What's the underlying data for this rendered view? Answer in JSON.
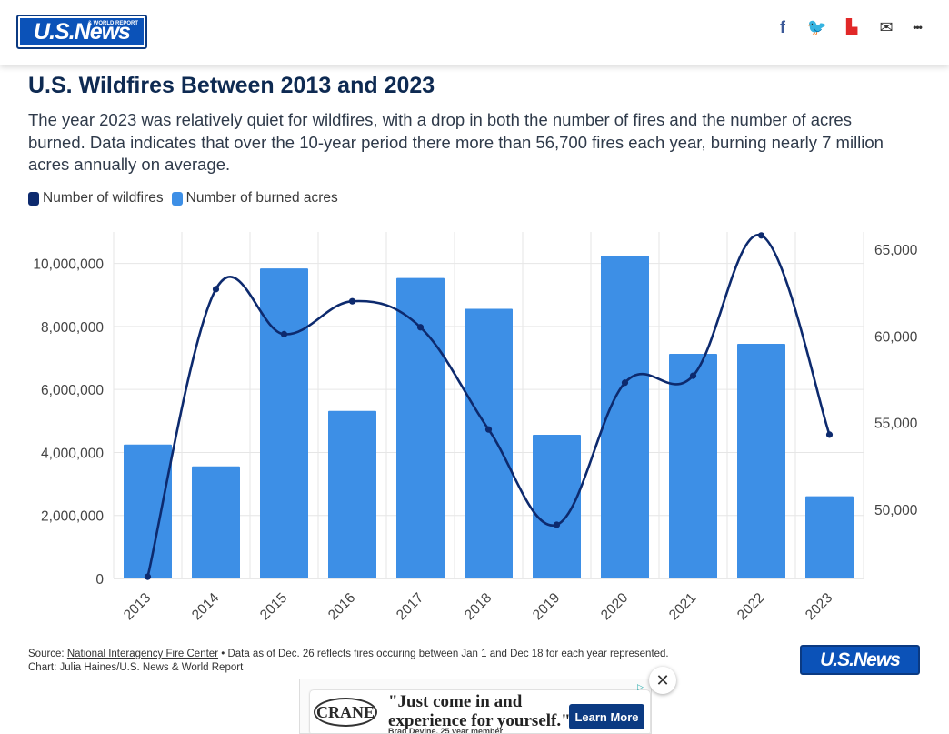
{
  "header": {
    "logo_text": "U.S.News",
    "logo_sub": "& WORLD REPORT",
    "share": [
      {
        "name": "facebook-icon",
        "glyph": "f",
        "color": "#3b5998"
      },
      {
        "name": "twitter-icon",
        "glyph": "🐦",
        "color": "#1da1f2"
      },
      {
        "name": "flipboard-icon",
        "glyph": "▙",
        "color": "#e12828"
      },
      {
        "name": "email-icon",
        "glyph": "✉",
        "color": "#333333"
      },
      {
        "name": "more-icon",
        "glyph": "•••",
        "color": "#333333"
      }
    ]
  },
  "article": {
    "title": "U.S. Wildfires Between 2013 and 2023",
    "description": "The year 2023 was relatively quiet for wildfires, with a drop in both the number of fires and the number of acres burned. Data indicates that over the 10-year period there more than 56,700 fires each year, burning nearly 7 million acres annually on average."
  },
  "legend": [
    {
      "label": "Number of wildfires",
      "color": "#0d2a6e"
    },
    {
      "label": "Number of burned acres",
      "color": "#3d8fe6"
    }
  ],
  "chart_data": {
    "type": "bar",
    "categories": [
      "2013",
      "2014",
      "2015",
      "2016",
      "2017",
      "2018",
      "2019",
      "2020",
      "2021",
      "2022",
      "2023"
    ],
    "series": [
      {
        "name": "Number of burned acres",
        "type": "bar",
        "axis": "left",
        "color": "#3d8fe6",
        "values": [
          4250000,
          3560000,
          9840000,
          5320000,
          9540000,
          8560000,
          4560000,
          10250000,
          7130000,
          7450000,
          2610000
        ]
      },
      {
        "name": "Number of wildfires",
        "type": "line",
        "axis": "right",
        "color": "#0d2a6e",
        "values": [
          46100,
          62700,
          60100,
          62000,
          60500,
          54600,
          49100,
          57300,
          57700,
          65800,
          54300
        ]
      }
    ],
    "left_axis": {
      "ticks": [
        0,
        2000000,
        4000000,
        6000000,
        8000000,
        10000000
      ],
      "tick_labels": [
        "0",
        "2,000,000",
        "4,000,000",
        "6,000,000",
        "8,000,000",
        "10,000,000"
      ],
      "range": [
        0,
        11000000
      ]
    },
    "right_axis": {
      "ticks": [
        50000,
        55000,
        60000,
        65000
      ],
      "tick_labels": [
        "50,000",
        "55,000",
        "60,000",
        "65,000"
      ],
      "range": [
        46000,
        66000
      ]
    },
    "grid": true
  },
  "source": {
    "prefix": "Source: ",
    "link_text": "National Interagency Fire Center",
    "note": " • Data as of Dec. 26 reflects fires occuring between Jan 1 and Dec 18 for each year represented.",
    "credit": "Chart: Julia Haines/U.S. News & World Report"
  },
  "ad": {
    "logo": "CRANE",
    "headline_1": "\"Just come in and",
    "headline_2": "experience for yourself.\"",
    "sub": "Brad Devine, 25 year member",
    "button": "Learn More",
    "close": "✕"
  }
}
